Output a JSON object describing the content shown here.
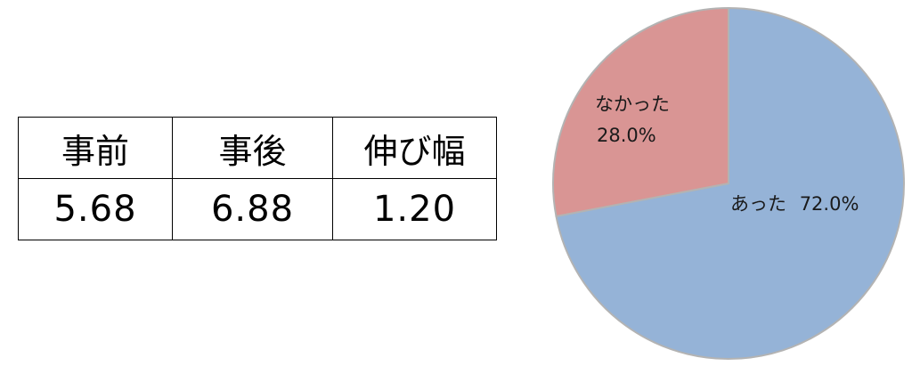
{
  "table": {
    "headers": [
      "事前",
      "事後",
      "伸び幅"
    ],
    "values": [
      "5.68",
      "6.88",
      "1.20"
    ]
  },
  "chart_data": {
    "type": "pie",
    "slices": [
      {
        "label": "あった",
        "value": 72.0,
        "value_label": "72.0%",
        "color": "#95b3d7"
      },
      {
        "label": "なかった",
        "value": 28.0,
        "value_label": "28.0%",
        "color": "#d99594"
      }
    ],
    "start": "12 o'clock",
    "direction": "clockwise",
    "edge_color": "#b3b3b3"
  }
}
